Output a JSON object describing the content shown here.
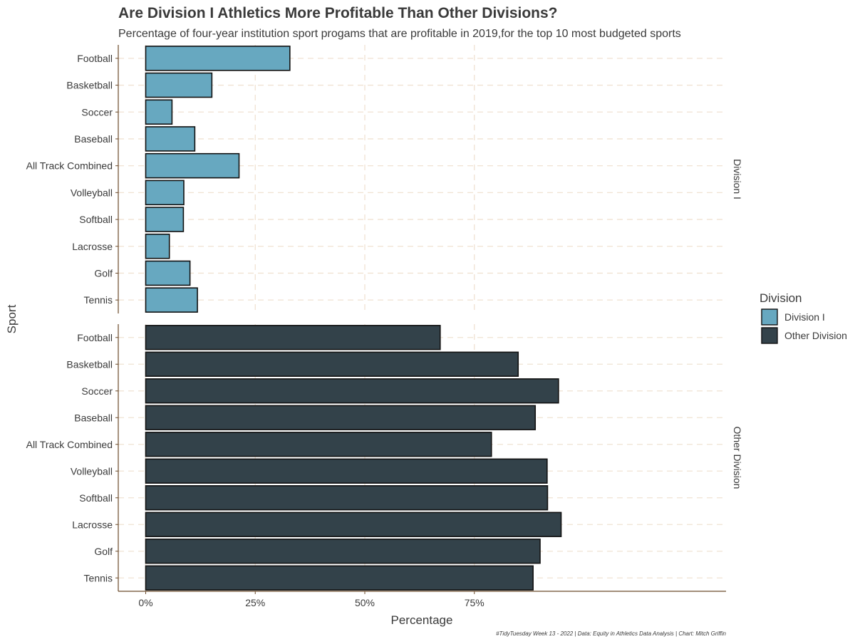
{
  "chart_data": {
    "type": "bar",
    "orientation": "horizontal",
    "title": "Are Division I Athletics More Profitable Than Other Divisions?",
    "subtitle": "Percentage of four-year institution sport progams that are profitable in 2019,for the top 10 most budgeted sports",
    "xlabel": "Percentage",
    "ylabel": "Sport",
    "caption": "#TidyTuesday Week 13 - 2022 | Data: Equity in Athletics Data Analysis | Chart: Mitch Griffin",
    "xlim": [
      0,
      1
    ],
    "x_ticks": [
      0,
      0.25,
      0.5,
      0.75
    ],
    "x_tick_labels": [
      "0%",
      "25%",
      "50%",
      "75%"
    ],
    "grid": true,
    "legend_position": "right",
    "legend_title": "Division",
    "categories": [
      "Football",
      "Basketball",
      "Soccer",
      "Baseball",
      "All Track Combined",
      "Volleyball",
      "Softball",
      "Lacrosse",
      "Golf",
      "Tennis"
    ],
    "series": [
      {
        "name": "Division I",
        "facet_label": "Division I",
        "color": "#67a8c0",
        "values": [
          0.329,
          0.151,
          0.06,
          0.112,
          0.213,
          0.087,
          0.086,
          0.054,
          0.101,
          0.118
        ]
      },
      {
        "name": "Other Division",
        "facet_label": "Other Division",
        "color": "#33424a",
        "values": [
          0.672,
          0.85,
          0.942,
          0.889,
          0.789,
          0.916,
          0.917,
          0.948,
          0.9,
          0.884
        ]
      }
    ]
  }
}
